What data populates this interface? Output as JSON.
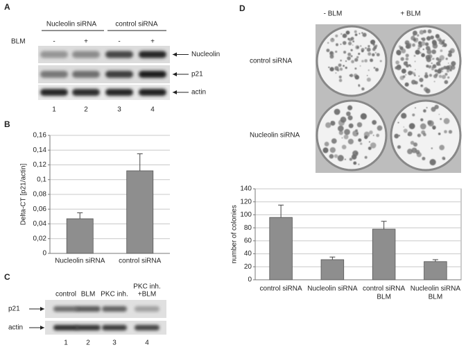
{
  "panels": {
    "a": {
      "label": "A",
      "groups": [
        "Nucleolin siRNA",
        "control siRNA"
      ],
      "row_label": "BLM",
      "treatments": [
        "-",
        "+",
        "-",
        "+"
      ],
      "bands": [
        "Nucleolin",
        "p21",
        "actin"
      ],
      "lanes": [
        "1",
        "2",
        "3",
        "4"
      ]
    },
    "b": {
      "label": "B"
    },
    "c": {
      "label": "C",
      "conditions": [
        [
          "control"
        ],
        [
          "BLM"
        ],
        [
          "PKC inh."
        ],
        [
          "PKC inh.",
          "+BLM"
        ]
      ],
      "bands": [
        "p21",
        "actin"
      ],
      "lanes": [
        "1",
        "2",
        "3",
        "4"
      ]
    },
    "d": {
      "label": "D",
      "columns": [
        "- BLM",
        "+ BLM"
      ],
      "rows": [
        "control siRNA",
        "Nucleolin siRNA"
      ]
    }
  },
  "chart_data": [
    {
      "type": "bar",
      "ylabel": "Delta-CT [p21/actin]",
      "categories": [
        "Nucleolin siRNA",
        "control siRNA"
      ],
      "values": [
        0.047,
        0.112
      ],
      "errors": [
        0.008,
        0.023
      ],
      "color": "#8e8e8e",
      "ylim": [
        0,
        0.16
      ],
      "yticks": [
        0,
        {
          "value": 0.02,
          "label": "0,02"
        },
        {
          "value": 0.04,
          "label": "0,04"
        },
        {
          "value": 0.06,
          "label": "0,06"
        },
        {
          "value": 0.08,
          "label": "0,08"
        },
        {
          "value": 0.1,
          "label": "0,1"
        },
        {
          "value": 0.12,
          "label": "0,12"
        },
        {
          "value": 0.14,
          "label": "0,14"
        },
        {
          "value": 0.16,
          "label": "0,16"
        }
      ],
      "grid": true
    },
    {
      "type": "bar",
      "ylabel": "number of colonies",
      "categories": [
        [
          "control siRNA"
        ],
        [
          "Nucleolin siRNA"
        ],
        [
          "control siRNA",
          "BLM"
        ],
        [
          "Nucleolin siRNA",
          "BLM"
        ]
      ],
      "values": [
        96,
        31,
        78,
        28
      ],
      "errors": [
        19,
        4,
        12,
        3
      ],
      "color": "#8e8e8e",
      "ylim": [
        0,
        140
      ],
      "yticks": [
        0,
        20,
        40,
        60,
        80,
        100,
        120,
        140
      ],
      "grid": true
    }
  ]
}
